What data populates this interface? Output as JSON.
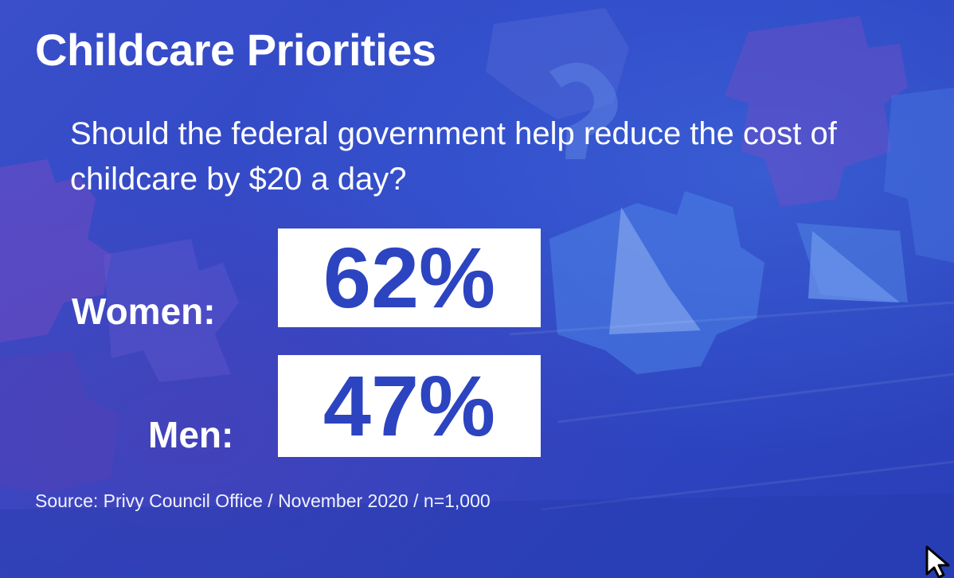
{
  "title": "Childcare Priorities",
  "question": "Should the federal government help reduce the cost of childcare by $20 a day?",
  "results": [
    {
      "label": "Women:",
      "value": "62%"
    },
    {
      "label": "Men:",
      "value": "47%"
    }
  ],
  "source": "Source: Privy Council Office / November 2020 / n=1,000",
  "colors": {
    "background": "#2f46c4",
    "value_text": "#2c44c0",
    "text": "#ffffff"
  },
  "icons": {
    "cursor": "mouse-pointer-icon",
    "background_art": "foam-puzzle-mat"
  }
}
